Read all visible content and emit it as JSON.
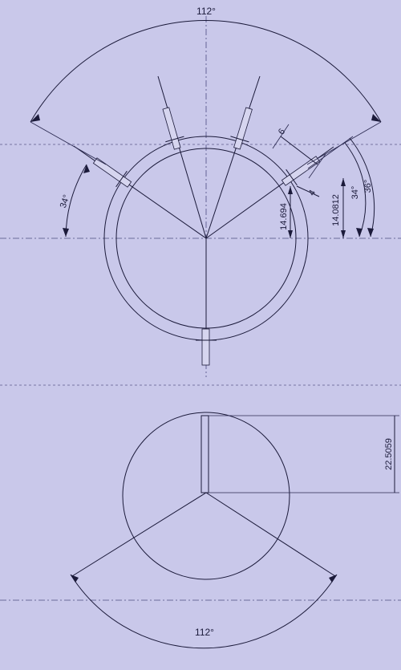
{
  "drawing": {
    "labels": {
      "top_arc_angle": "112°",
      "left_angle": "34°",
      "right_angle_small": "34°",
      "right_angle_large": "36°",
      "dim_pin_width": "6",
      "dim_pin_offset": "4",
      "dim_radius_a": "14.694",
      "dim_radius_b": "14.0812",
      "dim_height": "22.5059",
      "bottom_arc_angle": "112°"
    },
    "colors": {
      "paper": "#c9c8ea",
      "line": "#1b1a3a",
      "centerline": "#4d4c80"
    }
  }
}
